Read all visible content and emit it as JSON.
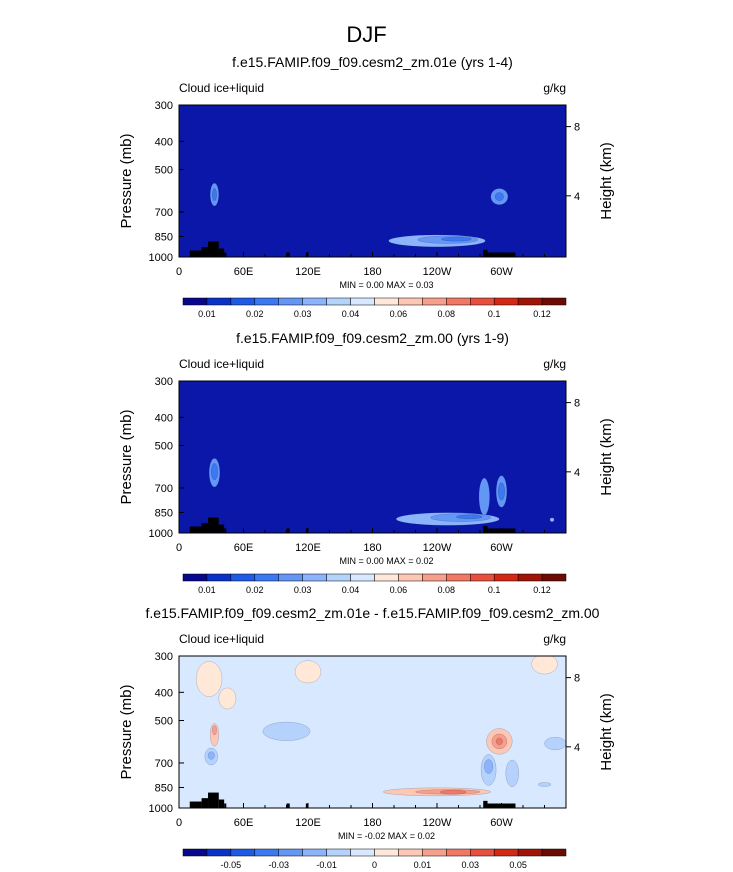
{
  "page_title": "DJF",
  "colors": {
    "cmap_top": [
      "#08088c",
      "#0a32c8",
      "#1e5ae6",
      "#3c78f0",
      "#6496f5",
      "#8cb4fa",
      "#b4d2fc",
      "#d7e8ff",
      "#ffe8d7",
      "#fcc8b4",
      "#f5a08c",
      "#f07864",
      "#e6503c",
      "#d22814",
      "#a01408",
      "#6e0a04"
    ],
    "background_field_top": "#0b17a8",
    "background_field_diff": "#d7e8ff",
    "terrain": "#000000"
  },
  "chart_data": [
    {
      "type": "heatmap",
      "name": "panel-top",
      "title": "f.e15.FAMIP.f09_f09.cesm2_zm.01e (yrs 1-4)",
      "left_label": "Cloud ice+liquid",
      "right_label": "g/kg",
      "ylabel": "Pressure (mb)",
      "y2label": "Height (km)",
      "x_ticks": [
        "0",
        "60E",
        "120E",
        "180",
        "120W",
        "60W"
      ],
      "x_tick_values": [
        0,
        60,
        120,
        180,
        240,
        300
      ],
      "xlim": [
        0,
        360
      ],
      "y_ticks": [
        "300",
        "400",
        "500",
        "700",
        "850",
        "1000"
      ],
      "y_tick_values": [
        300,
        400,
        500,
        700,
        850,
        1000
      ],
      "ylim": [
        1000,
        300
      ],
      "y2_ticks": [
        "8",
        "4"
      ],
      "y2_tick_pressures": [
        356,
        616
      ],
      "stats": {
        "min_label": "MIN =",
        "min": "0.00",
        "max_label": "MAX =",
        "max": "0.03"
      },
      "colorbar_labels": [
        "0.01",
        "0.02",
        "0.03",
        "0.04",
        "0.06",
        "0.08",
        "0.1",
        "0.12"
      ],
      "colorbar_label_bins": [
        1,
        3,
        5,
        7,
        9,
        11,
        13,
        15
      ],
      "blobs": [
        {
          "lon": 33,
          "p": 610,
          "rx": 4,
          "rp": 55,
          "level": 4
        },
        {
          "lon": 33,
          "p": 610,
          "rx": 2,
          "rp": 30,
          "level": 3
        },
        {
          "lon": 298,
          "p": 620,
          "rx": 8,
          "rp": 40,
          "level": 4
        },
        {
          "lon": 298,
          "p": 620,
          "rx": 4,
          "rp": 20,
          "level": 3
        },
        {
          "lon": 240,
          "p": 880,
          "rx": 45,
          "rp": 42,
          "level": 5
        },
        {
          "lon": 250,
          "p": 872,
          "rx": 28,
          "rp": 26,
          "level": 4
        },
        {
          "lon": 258,
          "p": 868,
          "rx": 14,
          "rp": 14,
          "level": 3
        }
      ]
    },
    {
      "type": "heatmap",
      "name": "panel-middle",
      "title": "f.e15.FAMIP.f09_f09.cesm2_zm.00 (yrs 1-9)",
      "left_label": "Cloud ice+liquid",
      "right_label": "g/kg",
      "ylabel": "Pressure (mb)",
      "y2label": "Height (km)",
      "x_ticks": [
        "0",
        "60E",
        "120E",
        "180",
        "120W",
        "60W"
      ],
      "x_tick_values": [
        0,
        60,
        120,
        180,
        240,
        300
      ],
      "xlim": [
        0,
        360
      ],
      "y_ticks": [
        "300",
        "400",
        "500",
        "700",
        "850",
        "1000"
      ],
      "y_tick_values": [
        300,
        400,
        500,
        700,
        850,
        1000
      ],
      "ylim": [
        1000,
        300
      ],
      "y2_ticks": [
        "8",
        "4"
      ],
      "y2_tick_pressures": [
        356,
        616
      ],
      "stats": {
        "min_label": "MIN =",
        "min": "0.00",
        "max_label": "MAX =",
        "max": "0.02"
      },
      "colorbar_labels": [
        "0.01",
        "0.02",
        "0.03",
        "0.04",
        "0.06",
        "0.08",
        "0.1",
        "0.12"
      ],
      "colorbar_label_bins": [
        1,
        3,
        5,
        7,
        9,
        11,
        13,
        15
      ],
      "blobs": [
        {
          "lon": 33,
          "p": 620,
          "rx": 5,
          "rp": 70,
          "level": 4
        },
        {
          "lon": 33,
          "p": 615,
          "rx": 3,
          "rp": 40,
          "level": 3
        },
        {
          "lon": 300,
          "p": 720,
          "rx": 5,
          "rp": 90,
          "level": 4
        },
        {
          "lon": 300,
          "p": 720,
          "rx": 3,
          "rp": 50,
          "level": 3
        },
        {
          "lon": 284,
          "p": 750,
          "rx": 5,
          "rp": 110,
          "level": 4
        },
        {
          "lon": 250,
          "p": 895,
          "rx": 48,
          "rp": 45,
          "level": 5
        },
        {
          "lon": 262,
          "p": 885,
          "rx": 28,
          "rp": 28,
          "level": 4
        },
        {
          "lon": 270,
          "p": 880,
          "rx": 12,
          "rp": 14,
          "level": 3
        },
        {
          "lon": 347,
          "p": 900,
          "rx": 2,
          "rp": 8,
          "level": 5
        }
      ]
    },
    {
      "type": "heatmap",
      "name": "panel-diff",
      "title": "f.e15.FAMIP.f09_f09.cesm2_zm.01e - f.e15.FAMIP.f09_f09.cesm2_zm.00",
      "left_label": "Cloud ice+liquid",
      "right_label": "g/kg",
      "ylabel": "Pressure (mb)",
      "y2label": "Height (km)",
      "x_ticks": [
        "0",
        "60E",
        "120E",
        "180",
        "120W",
        "60W"
      ],
      "x_tick_values": [
        0,
        60,
        120,
        180,
        240,
        300
      ],
      "xlim": [
        0,
        360
      ],
      "y_ticks": [
        "300",
        "400",
        "500",
        "700",
        "850",
        "1000"
      ],
      "y_tick_values": [
        300,
        400,
        500,
        700,
        850,
        1000
      ],
      "ylim": [
        1000,
        300
      ],
      "y2_ticks": [
        "8",
        "4"
      ],
      "y2_tick_pressures": [
        356,
        616
      ],
      "stats": {
        "min_label": "MIN =",
        "min": "-0.02",
        "max_label": "MAX =",
        "max": "0.02"
      },
      "colorbar_labels": [
        "-0.05",
        "-0.03",
        "-0.01",
        "0",
        "0.01",
        "0.03",
        "0.05"
      ],
      "colorbar_label_bins": [
        2,
        4,
        6,
        8,
        10,
        12,
        14
      ],
      "blobs": [
        {
          "lon": 28,
          "p": 360,
          "rx": 12,
          "rp": 50,
          "level": 8
        },
        {
          "lon": 45,
          "p": 420,
          "rx": 8,
          "rp": 35,
          "level": 8
        },
        {
          "lon": 120,
          "p": 340,
          "rx": 12,
          "rp": 30,
          "level": 8
        },
        {
          "lon": 340,
          "p": 320,
          "rx": 12,
          "rp": 25,
          "level": 8
        },
        {
          "lon": 33,
          "p": 560,
          "rx": 4,
          "rp": 50,
          "level": 9
        },
        {
          "lon": 33,
          "p": 540,
          "rx": 2,
          "rp": 20,
          "level": 10
        },
        {
          "lon": 30,
          "p": 665,
          "rx": 6,
          "rp": 45,
          "level": 6
        },
        {
          "lon": 30,
          "p": 660,
          "rx": 3,
          "rp": 20,
          "level": 5
        },
        {
          "lon": 100,
          "p": 545,
          "rx": 22,
          "rp": 40,
          "level": 6
        },
        {
          "lon": 298,
          "p": 590,
          "rx": 12,
          "rp": 60,
          "level": 9
        },
        {
          "lon": 298,
          "p": 590,
          "rx": 7,
          "rp": 35,
          "level": 10
        },
        {
          "lon": 298,
          "p": 590,
          "rx": 3,
          "rp": 16,
          "level": 11
        },
        {
          "lon": 350,
          "p": 600,
          "rx": 10,
          "rp": 30,
          "level": 6
        },
        {
          "lon": 288,
          "p": 740,
          "rx": 7,
          "rp": 90,
          "level": 6
        },
        {
          "lon": 288,
          "p": 720,
          "rx": 4,
          "rp": 40,
          "level": 5
        },
        {
          "lon": 310,
          "p": 760,
          "rx": 6,
          "rp": 80,
          "level": 6
        },
        {
          "lon": 340,
          "p": 830,
          "rx": 6,
          "rp": 12,
          "level": 6
        },
        {
          "lon": 240,
          "p": 880,
          "rx": 50,
          "rp": 28,
          "level": 9
        },
        {
          "lon": 250,
          "p": 880,
          "rx": 30,
          "rp": 16,
          "level": 10
        },
        {
          "lon": 255,
          "p": 882,
          "rx": 12,
          "rp": 8,
          "level": 11
        }
      ]
    }
  ],
  "terrain": [
    {
      "lon0": 10,
      "lon1": 21,
      "p": 950
    },
    {
      "lon0": 21,
      "lon1": 27,
      "p": 925
    },
    {
      "lon0": 27,
      "lon1": 37,
      "p": 885
    },
    {
      "lon0": 37,
      "lon1": 42,
      "p": 935
    },
    {
      "lon0": 42,
      "lon1": 44,
      "p": 965
    },
    {
      "lon0": 100,
      "lon1": 103,
      "p": 965
    },
    {
      "lon0": 118,
      "lon1": 120,
      "p": 965
    },
    {
      "lon0": 283,
      "lon1": 287,
      "p": 945
    },
    {
      "lon0": 287,
      "lon1": 313,
      "p": 965
    }
  ]
}
